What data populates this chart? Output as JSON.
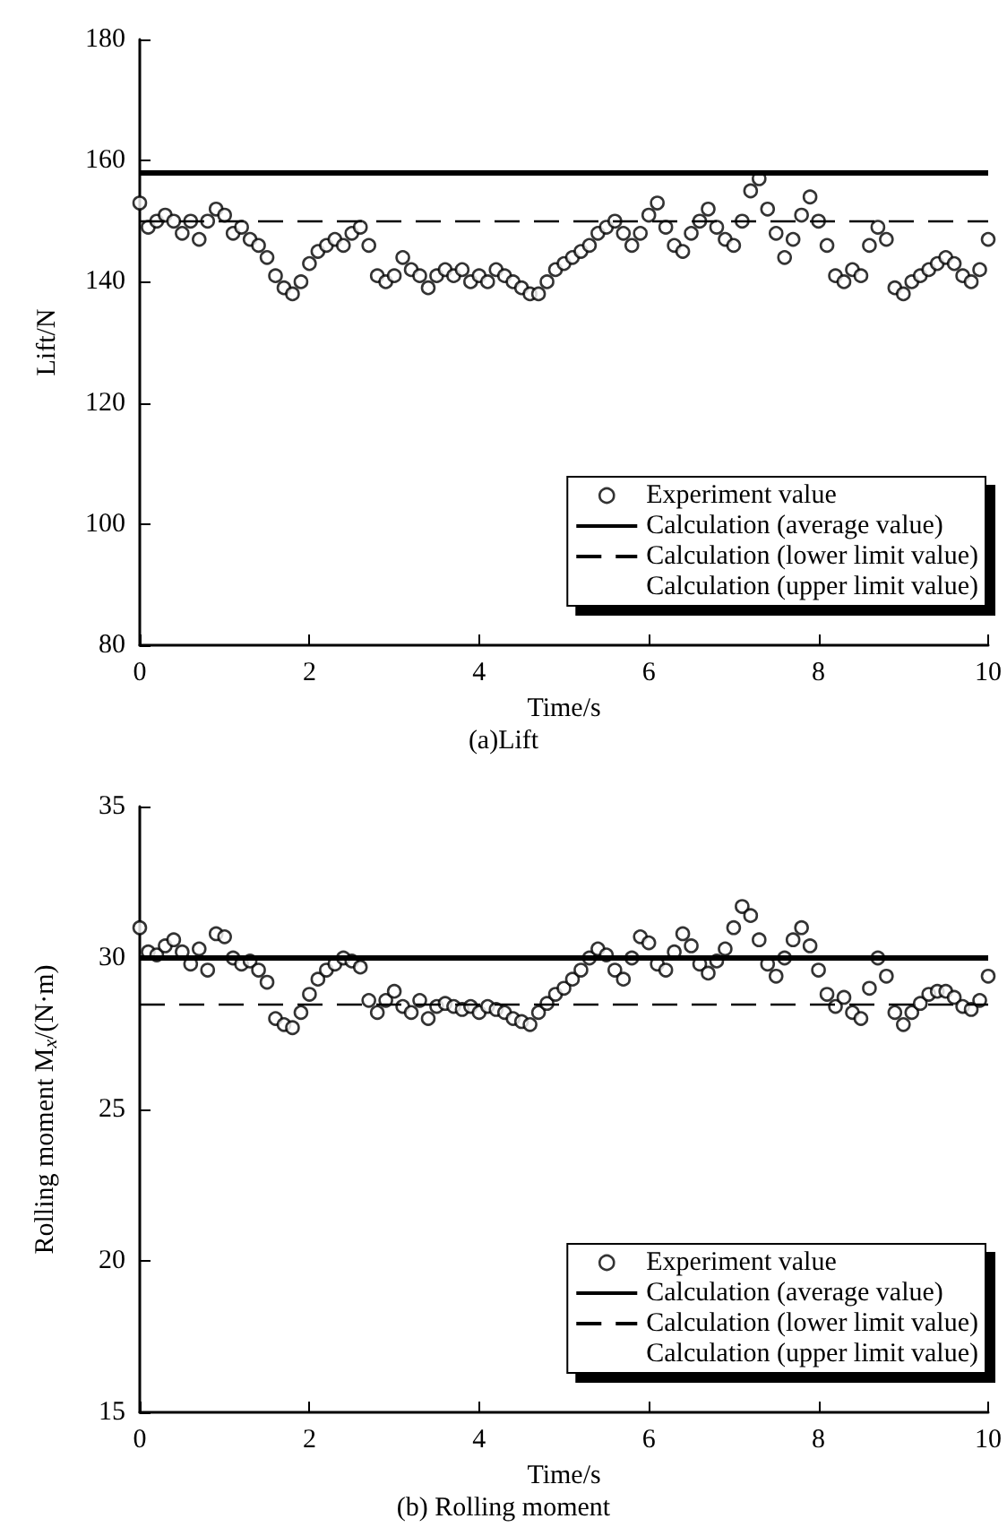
{
  "chart_data": [
    {
      "type": "scatter",
      "title": "(a)Lift",
      "xlabel": "Time/s",
      "ylabel": "Lift/N",
      "xlim": [
        0,
        10
      ],
      "xticks": [
        0,
        2,
        4,
        6,
        8,
        10
      ],
      "ylim": [
        80,
        180
      ],
      "yticks": [
        80,
        100,
        120,
        140,
        160,
        180
      ],
      "grid": false,
      "legend": "bottom right",
      "marker": "circle",
      "x": [
        0,
        0.1,
        0.2,
        0.3,
        0.4,
        0.5,
        0.6,
        0.7,
        0.8,
        0.9,
        1,
        1.1,
        1.2,
        1.3,
        1.4,
        1.5,
        1.6,
        1.7,
        1.8,
        1.9,
        2,
        2.1,
        2.2,
        2.3,
        2.4,
        2.5,
        2.6,
        2.7,
        2.8,
        2.9,
        3,
        3.1,
        3.2,
        3.3,
        3.4,
        3.5,
        3.6,
        3.7,
        3.8,
        3.9,
        4,
        4.1,
        4.2,
        4.3,
        4.4,
        4.5,
        4.6,
        4.7,
        4.8,
        4.9,
        5,
        5.1,
        5.2,
        5.3,
        5.4,
        5.5,
        5.6,
        5.7,
        5.8,
        5.9,
        6,
        6.1,
        6.2,
        6.3,
        6.4,
        6.5,
        6.6,
        6.7,
        6.8,
        6.9,
        7,
        7.1,
        7.2,
        7.3,
        7.4,
        7.5,
        7.6,
        7.7,
        7.8,
        7.9,
        8,
        8.1,
        8.2,
        8.3,
        8.4,
        8.5,
        8.6,
        8.7,
        8.8,
        8.9,
        9,
        9.1,
        9.2,
        9.3,
        9.4,
        9.5,
        9.6,
        9.7,
        9.8,
        9.9,
        10
      ],
      "series": [
        {
          "name": "Experiment value",
          "color": "#000000",
          "values": [
            153,
            149,
            150,
            151,
            150,
            148,
            150,
            147,
            150,
            152,
            151,
            148,
            149,
            147,
            146,
            144,
            141,
            139,
            138,
            140,
            143,
            145,
            146,
            147,
            146,
            148,
            149,
            146,
            141,
            140,
            141,
            144,
            142,
            141,
            139,
            141,
            142,
            141,
            142,
            140,
            141,
            140,
            142,
            141,
            140,
            139,
            138,
            138,
            140,
            142,
            143,
            144,
            145,
            146,
            148,
            149,
            150,
            148,
            146,
            148,
            151,
            153,
            149,
            146,
            145,
            148,
            150,
            152,
            149,
            147,
            146,
            150,
            155,
            157,
            152,
            148,
            144,
            147,
            151,
            154,
            150,
            146,
            141,
            140,
            142,
            141,
            146,
            149,
            147,
            139,
            138,
            140,
            141,
            142,
            143,
            144,
            143,
            141,
            140,
            142,
            147
          ]
        },
        {
          "name": "Calculation (upper limit value)",
          "type": "line",
          "values": [
            null,
            null,
            null,
            null,
            null,
            null,
            null,
            null,
            null,
            null,
            null,
            null,
            null,
            null,
            null,
            null,
            null,
            null,
            null,
            null,
            null,
            null,
            null,
            null,
            null,
            null,
            null,
            null,
            null,
            null,
            null,
            null,
            null,
            null,
            null,
            null,
            null,
            null,
            null,
            null,
            null,
            null,
            null,
            null,
            null,
            null,
            null,
            null,
            null,
            null,
            null,
            null,
            null,
            null,
            null,
            null,
            null,
            null,
            null,
            null,
            null,
            null,
            null,
            null,
            null,
            null,
            null,
            null,
            null,
            null,
            null,
            null,
            null,
            null,
            null,
            null,
            null,
            null,
            null,
            null,
            null,
            null,
            null,
            null,
            null,
            null,
            null,
            null,
            null,
            null,
            null,
            null,
            null,
            null,
            null,
            null,
            null,
            null,
            null,
            null,
            null
          ]
        }
      ],
      "ref_lines": [
        {
          "axis": "y",
          "value": 158,
          "label": "Calculation (average value)",
          "line_style": "solid",
          "color": "#000000"
        },
        {
          "axis": "y",
          "value": 150,
          "label": "Calculation (lower limit value)",
          "line_style": "dashed",
          "color": "#000000"
        }
      ]
    },
    {
      "type": "scatter",
      "title": "(b) Rolling moment",
      "xlabel": "Time/s",
      "ylabel": "Rolling moment M$_{x}$/(N·m)",
      "xlim": [
        0,
        10
      ],
      "xticks": [
        0,
        2,
        4,
        6,
        8,
        10
      ],
      "ylim": [
        15,
        35
      ],
      "yticks": [
        15,
        20,
        25,
        30,
        35
      ],
      "grid": false,
      "legend": "bottom right",
      "marker": "circle",
      "x": [
        0,
        0.1,
        0.2,
        0.3,
        0.4,
        0.5,
        0.6,
        0.7,
        0.8,
        0.9,
        1,
        1.1,
        1.2,
        1.3,
        1.4,
        1.5,
        1.6,
        1.7,
        1.8,
        1.9,
        2,
        2.1,
        2.2,
        2.3,
        2.4,
        2.5,
        2.6,
        2.7,
        2.8,
        2.9,
        3,
        3.1,
        3.2,
        3.3,
        3.4,
        3.5,
        3.6,
        3.7,
        3.8,
        3.9,
        4,
        4.1,
        4.2,
        4.3,
        4.4,
        4.5,
        4.6,
        4.7,
        4.8,
        4.9,
        5,
        5.1,
        5.2,
        5.3,
        5.4,
        5.5,
        5.6,
        5.7,
        5.8,
        5.9,
        6,
        6.1,
        6.2,
        6.3,
        6.4,
        6.5,
        6.6,
        6.7,
        6.8,
        6.9,
        7,
        7.1,
        7.2,
        7.3,
        7.4,
        7.5,
        7.6,
        7.7,
        7.8,
        7.9,
        8,
        8.1,
        8.2,
        8.3,
        8.4,
        8.5,
        8.6,
        8.7,
        8.8,
        8.9,
        9,
        9.1,
        9.2,
        9.3,
        9.4,
        9.5,
        9.6,
        9.7,
        9.8,
        9.9,
        10
      ],
      "series": [
        {
          "name": "Experiment value",
          "color": "#000000",
          "values": [
            31,
            30.2,
            30.1,
            30.4,
            30.6,
            30.2,
            29.8,
            30.3,
            29.6,
            30.8,
            30.7,
            30,
            29.8,
            29.9,
            29.6,
            29.2,
            28,
            27.8,
            27.7,
            28.2,
            28.8,
            29.3,
            29.6,
            29.8,
            30,
            29.9,
            29.7,
            28.6,
            28.2,
            28.6,
            28.9,
            28.4,
            28.2,
            28.6,
            28,
            28.4,
            28.5,
            28.4,
            28.3,
            28.4,
            28.2,
            28.4,
            28.3,
            28.2,
            28,
            27.9,
            27.8,
            28.2,
            28.5,
            28.8,
            29,
            29.3,
            29.6,
            30,
            30.3,
            30.1,
            29.6,
            29.3,
            30,
            30.7,
            30.5,
            29.8,
            29.6,
            30.2,
            30.8,
            30.4,
            29.8,
            29.5,
            29.9,
            30.3,
            31,
            31.7,
            31.4,
            30.6,
            29.8,
            29.4,
            30,
            30.6,
            31,
            30.4,
            29.6,
            28.8,
            28.4,
            28.7,
            28.2,
            28,
            29,
            30,
            29.4,
            28.2,
            27.8,
            28.2,
            28.5,
            28.8,
            28.9,
            28.9,
            28.7,
            28.4,
            28.3,
            28.6,
            29.4
          ]
        },
        {
          "name": "Calculation (upper limit value)",
          "type": "line",
          "values": [
            null,
            null,
            null,
            null,
            null,
            null,
            null,
            null,
            null,
            null,
            null,
            null,
            null,
            null,
            null,
            null,
            null,
            null,
            null,
            null,
            null,
            null,
            null,
            null,
            null,
            null,
            null,
            null,
            null,
            null,
            null,
            null,
            null,
            null,
            null,
            null,
            null,
            null,
            null,
            null,
            null,
            null,
            null,
            null,
            null,
            null,
            null,
            null,
            null,
            null,
            null,
            null,
            null,
            null,
            null,
            null,
            null,
            null,
            null,
            null,
            null,
            null,
            null,
            null,
            null,
            null,
            null,
            null,
            null,
            null,
            null,
            null,
            null,
            null,
            null,
            null,
            null,
            null,
            null,
            null,
            null,
            null,
            null,
            null,
            null,
            null,
            null,
            null,
            null,
            null,
            null,
            null,
            null,
            null,
            null,
            null,
            null,
            null,
            null,
            null,
            null
          ]
        }
      ],
      "ref_lines": [
        {
          "axis": "y",
          "value": 30,
          "label": "Calculation (average value)",
          "line_style": "solid",
          "color": "#000000"
        },
        {
          "axis": "y",
          "value": 28.5,
          "label": "Calculation (lower limit value)",
          "line_style": "dashed",
          "color": "#000000"
        }
      ]
    }
  ]
}
